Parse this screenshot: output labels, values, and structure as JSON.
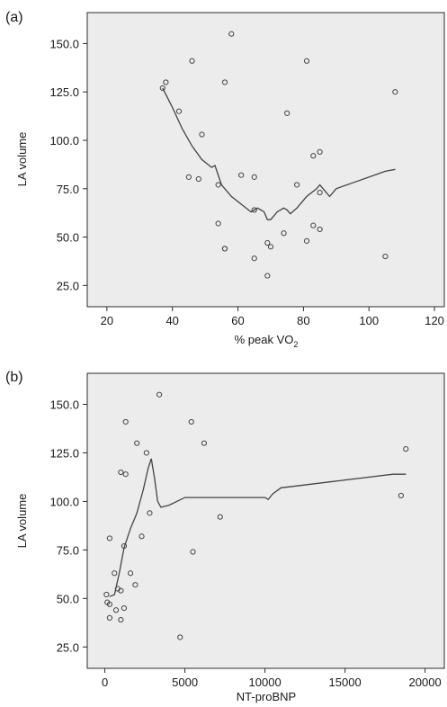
{
  "chart_data": [
    {
      "type": "scatter",
      "panel_label": "(a)",
      "xlabel": "% peak VO",
      "xlabel_sub": "2",
      "ylabel": "LA volume",
      "xlim": [
        14,
        123
      ],
      "ylim": [
        14,
        166
      ],
      "xticks": [
        20,
        40,
        60,
        80,
        100,
        120
      ],
      "xtick_labels": [
        "20",
        "40",
        "60",
        "80",
        "100",
        "120"
      ],
      "yticks": [
        25,
        50,
        75,
        100,
        125,
        150
      ],
      "ytick_labels": [
        "25.0",
        "50.0",
        "75.0",
        "100.0",
        "125.0",
        "150.0"
      ],
      "grid": false,
      "points": {
        "x": [
          37,
          38,
          42,
          46,
          49,
          45,
          48,
          54,
          56,
          58,
          56,
          61,
          65,
          65,
          69,
          70,
          69,
          65,
          74,
          75,
          78,
          81,
          83,
          85,
          85,
          54,
          56,
          83,
          85,
          81,
          105,
          108
        ],
        "y": [
          127,
          130,
          115,
          141,
          103,
          81,
          80,
          77,
          130,
          155,
          44,
          82,
          81,
          39,
          47,
          45,
          30,
          64,
          52,
          114,
          77,
          141,
          92,
          94,
          73,
          57,
          44,
          56,
          54,
          48,
          40,
          125
        ]
      },
      "fit_line": {
        "x": [
          37,
          40,
          43,
          46,
          49,
          52,
          53,
          55,
          58,
          61,
          64,
          66,
          68,
          69,
          70,
          72,
          74,
          75,
          76,
          78,
          81,
          84,
          85,
          86,
          88,
          90,
          95,
          100,
          105,
          108
        ],
        "y": [
          127,
          117,
          106,
          97,
          90,
          86,
          87,
          77,
          71,
          67,
          63,
          65,
          63,
          59,
          59,
          63,
          65,
          64,
          62,
          65,
          71,
          75,
          77,
          75,
          71,
          75,
          78,
          81,
          84,
          85
        ]
      }
    },
    {
      "type": "scatter",
      "panel_label": "(b)",
      "xlabel": "NT-proBNP",
      "ylabel": "LA volume",
      "xlim": [
        -1100,
        21200
      ],
      "ylim": [
        14,
        166
      ],
      "xticks": [
        0,
        5000,
        10000,
        15000,
        20000
      ],
      "xtick_labels": [
        "0",
        "5000",
        "10000",
        "15000",
        "20000"
      ],
      "yticks": [
        25,
        50,
        75,
        100,
        125,
        150
      ],
      "ytick_labels": [
        "25.0",
        "50.0",
        "75.0",
        "100.0",
        "125.0",
        "150.0"
      ],
      "grid": false,
      "points": {
        "x": [
          100,
          150,
          300,
          300,
          300,
          600,
          800,
          700,
          1000,
          1000,
          1200,
          1000,
          1300,
          1300,
          1200,
          1600,
          1900,
          2000,
          2300,
          2600,
          2800,
          3400,
          4700,
          5400,
          5500,
          6200,
          7200,
          18500,
          18800
        ],
        "y": [
          52,
          48,
          47,
          40,
          81,
          63,
          55,
          44,
          54,
          39,
          45,
          115,
          114,
          141,
          77,
          63,
          57,
          130,
          82,
          125,
          94,
          155,
          30,
          141,
          74,
          130,
          92,
          103,
          127
        ]
      },
      "fit_line": {
        "x": [
          300,
          600,
          900,
          1200,
          1600,
          2000,
          2400,
          2700,
          2900,
          3100,
          3300,
          3500,
          4000,
          5000,
          7000,
          10000,
          10200,
          10500,
          11000,
          12000,
          14000,
          16000,
          18000,
          18800
        ],
        "y": [
          51,
          52,
          63,
          76,
          86,
          94,
          106,
          117,
          122,
          112,
          100,
          97,
          98,
          102,
          102,
          102,
          101,
          104,
          107,
          108,
          110,
          112,
          114,
          114
        ]
      }
    }
  ]
}
